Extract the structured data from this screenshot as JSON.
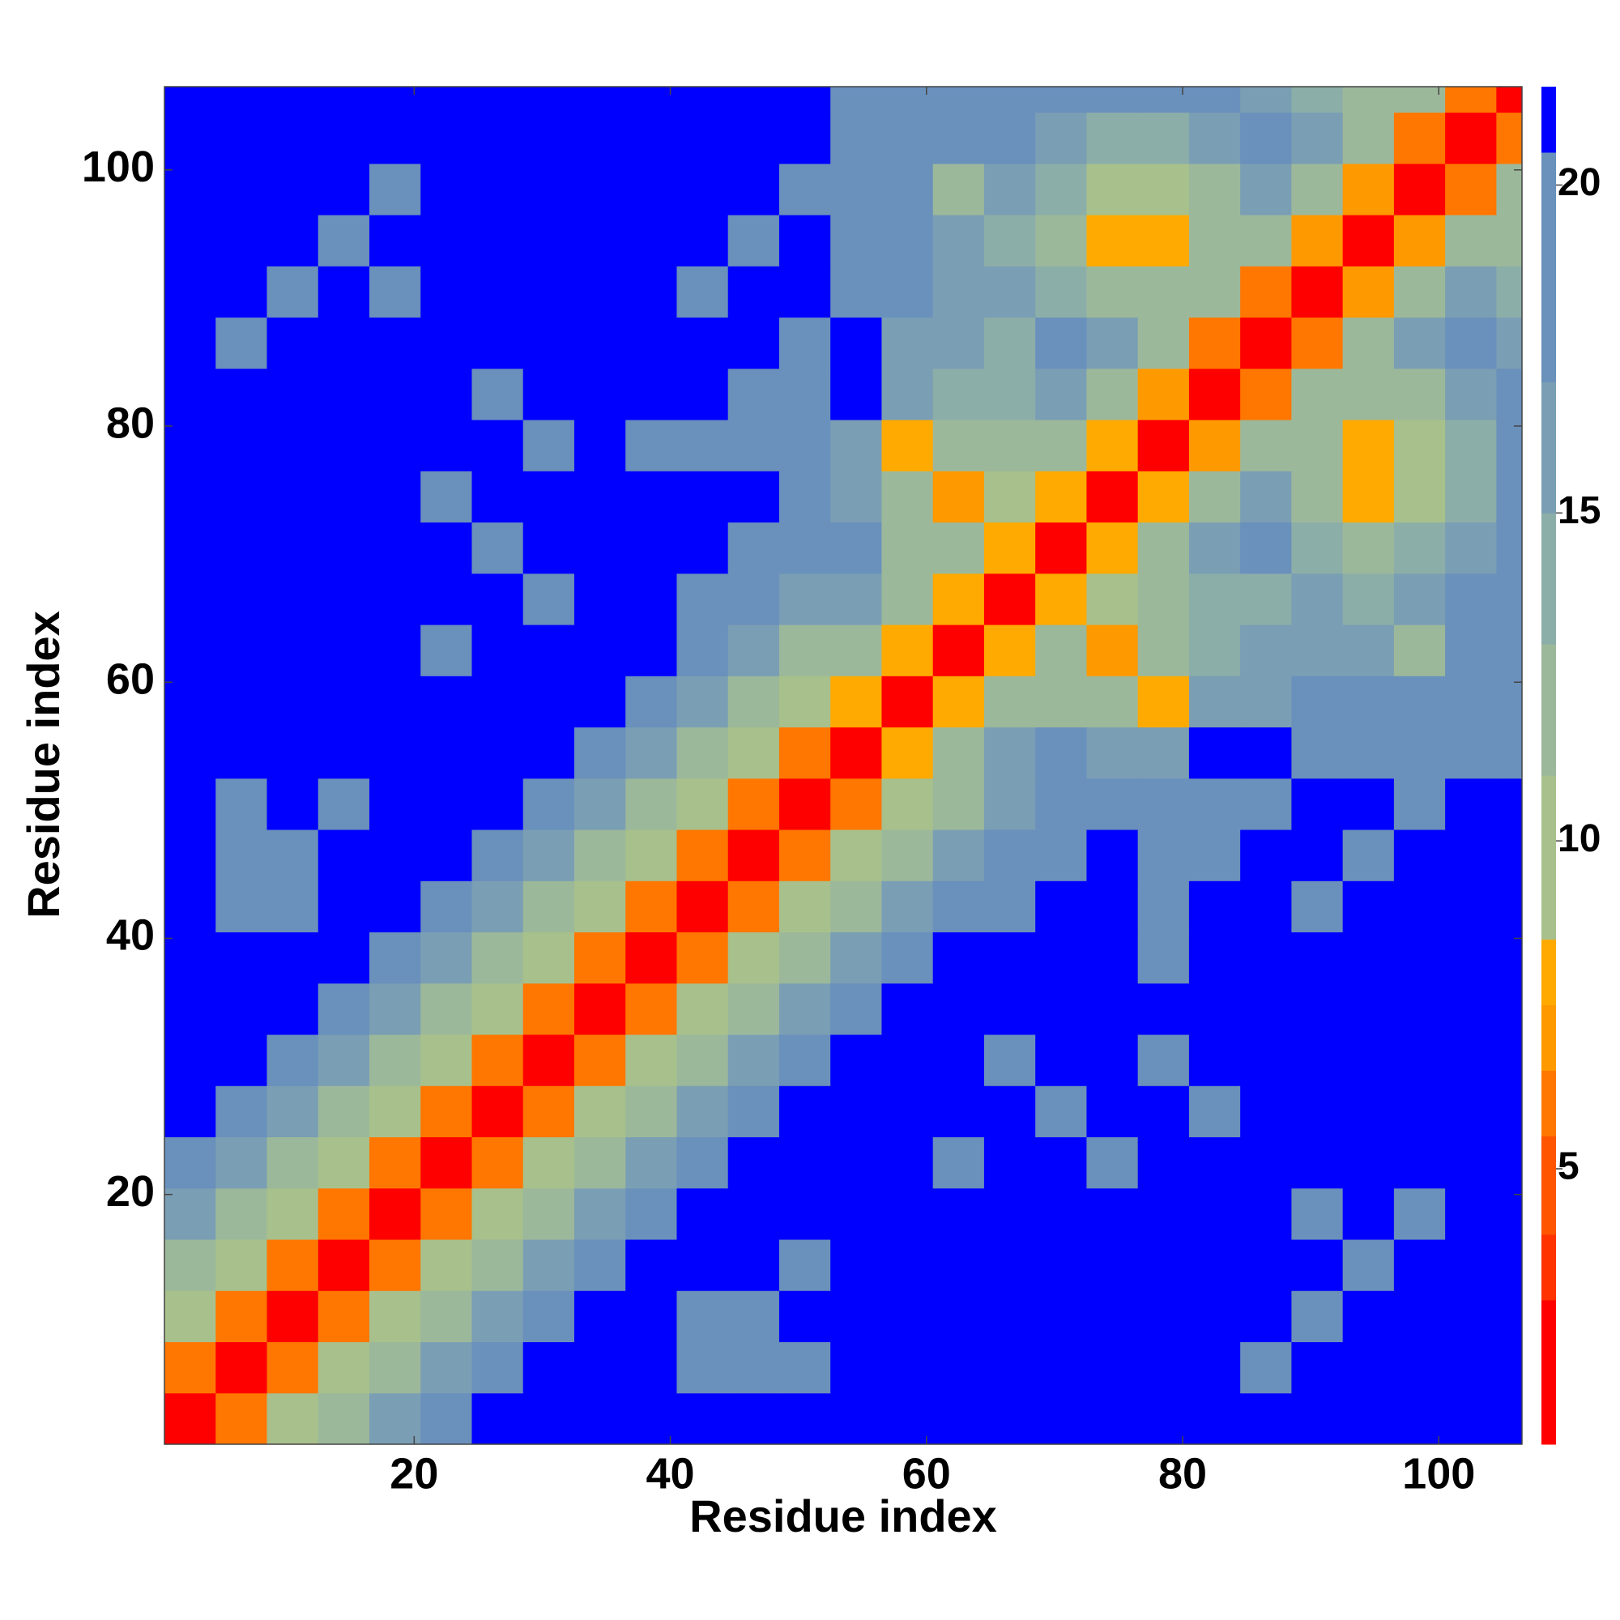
{
  "chart_data": {
    "type": "heatmap",
    "xlabel": "Residue index",
    "ylabel": "Residue index",
    "xbins": [
      0.5,
      4.5,
      8.5,
      12.5,
      16.5,
      20.5,
      24.5,
      28.5,
      32.5,
      36.5,
      40.5,
      44.5,
      48.5,
      52.5,
      56.5,
      60.5,
      64.5,
      68.5,
      72.5,
      76.5,
      80.5,
      84.5,
      88.5,
      92.5,
      96.5,
      100.5,
      104.5,
      106.5
    ],
    "ybins": [
      0.5,
      4.5,
      8.5,
      12.5,
      16.5,
      20.5,
      24.5,
      28.5,
      32.5,
      36.5,
      40.5,
      44.5,
      48.5,
      52.5,
      56.5,
      60.5,
      64.5,
      68.5,
      72.5,
      76.5,
      80.5,
      84.5,
      88.5,
      92.5,
      96.5,
      100.5,
      104.5,
      106.5
    ],
    "xlim": [
      0.5,
      106.5
    ],
    "ylim": [
      0.5,
      106.5
    ],
    "xticks": [
      20,
      40,
      60,
      80,
      100
    ],
    "yticks": [
      20,
      40,
      60,
      80,
      100
    ],
    "clim": [
      0.8,
      21.5
    ],
    "cticks": [
      5,
      10,
      15,
      20
    ],
    "colorscale": [
      [
        0.8,
        "#ff0000"
      ],
      [
        3,
        "#ff3300"
      ],
      [
        4,
        "#ff5500"
      ],
      [
        5.5,
        "#ff7700"
      ],
      [
        6.5,
        "#ff9900"
      ],
      [
        7.5,
        "#ffaa00"
      ],
      [
        8.5,
        "#a8c08c"
      ],
      [
        11,
        "#9cb89a"
      ],
      [
        13,
        "#8caea8"
      ],
      [
        15,
        "#7a9eb4"
      ],
      [
        17,
        "#6a90bc"
      ],
      [
        20.5,
        "#0000ff"
      ]
    ],
    "z": [
      [
        2,
        6,
        9,
        12,
        15,
        18,
        21.5,
        21.5,
        21.5,
        21.5,
        21.5,
        21.5,
        21.5,
        21.5,
        21.5,
        21.5,
        21.5,
        21.5,
        21.5,
        21.5,
        21.5,
        21.5,
        21.5,
        21.5,
        21.5,
        21.5,
        21.5
      ],
      [
        6,
        2,
        6,
        9,
        12,
        15,
        18,
        21.5,
        21.5,
        21.5,
        19,
        18,
        20,
        21.5,
        21.5,
        21.5,
        21.5,
        21.5,
        21.5,
        21.5,
        21.5,
        20,
        21.5,
        21.5,
        21.5,
        21.5,
        21.5
      ],
      [
        9,
        6,
        2,
        6,
        9,
        12,
        15,
        18,
        21.5,
        21.5,
        20,
        19,
        21.5,
        21.5,
        21.5,
        21.5,
        21.5,
        21.5,
        21.5,
        21.5,
        21.5,
        21.5,
        20,
        21.5,
        21.5,
        21.5,
        21.5
      ],
      [
        12,
        9,
        6,
        2,
        6,
        9,
        12,
        15,
        18,
        21.5,
        21.5,
        21.5,
        20,
        21.5,
        21.5,
        21.5,
        21.5,
        21.5,
        21.5,
        21.5,
        21.5,
        21.5,
        21.5,
        20,
        21.5,
        21.5,
        21.5
      ],
      [
        15,
        12,
        9,
        6,
        2,
        6,
        9,
        12,
        15,
        18,
        21.5,
        21.5,
        21.5,
        21.5,
        21.5,
        21.5,
        21.5,
        21.5,
        21.5,
        21.5,
        21.5,
        21.5,
        20,
        21.5,
        20,
        21.5,
        21.5
      ],
      [
        18,
        15,
        12,
        9,
        6,
        2,
        6,
        9,
        12,
        15,
        18,
        21.5,
        21.5,
        21.5,
        21.5,
        19,
        21.5,
        21.5,
        19,
        21.5,
        21.5,
        21.5,
        21.5,
        21.5,
        21.5,
        21.5,
        21.5
      ],
      [
        21.5,
        18,
        15,
        12,
        9,
        6,
        2,
        6,
        9,
        12,
        15,
        18,
        21.5,
        21.5,
        21.5,
        21.5,
        21.5,
        19,
        21.5,
        21.5,
        20,
        21.5,
        21.5,
        21.5,
        21.5,
        21.5,
        21.5
      ],
      [
        21.5,
        21.5,
        18,
        15,
        12,
        9,
        6,
        2,
        6,
        9,
        12,
        15,
        18,
        21.5,
        21.5,
        21.5,
        20,
        21.5,
        21.5,
        19,
        21.5,
        21.5,
        21.5,
        21.5,
        21.5,
        21.5,
        21.5
      ],
      [
        21.5,
        21.5,
        21.5,
        18,
        15,
        12,
        9,
        6,
        2,
        6,
        9,
        12,
        15,
        18,
        21.5,
        21.5,
        21.5,
        21.5,
        21.5,
        21.5,
        21.5,
        21.5,
        21.5,
        21.5,
        21.5,
        21.5,
        21.5
      ],
      [
        21.5,
        21.5,
        21.5,
        21.5,
        18,
        15,
        12,
        9,
        6,
        2,
        6,
        9,
        12,
        15,
        18,
        21.5,
        21.5,
        21.5,
        21.5,
        20,
        21.5,
        21.5,
        21.5,
        21.5,
        21.5,
        21.5,
        21.5
      ],
      [
        21.5,
        19,
        20,
        21.5,
        21.5,
        18,
        15,
        12,
        9,
        6,
        2,
        6,
        9,
        12,
        15,
        18,
        20,
        21.5,
        21.5,
        19,
        21.5,
        21.5,
        19,
        21.5,
        21.5,
        21.5,
        21.5
      ],
      [
        21.5,
        18,
        19,
        21.5,
        21.5,
        21.5,
        18,
        15,
        12,
        9,
        6,
        2,
        6,
        9,
        12,
        15,
        18,
        19,
        21.5,
        18,
        19,
        21.5,
        21.5,
        19,
        21.5,
        21.5,
        21.5
      ],
      [
        21.5,
        20,
        21.5,
        20,
        21.5,
        21.5,
        21.5,
        18,
        15,
        12,
        9,
        6,
        2,
        6,
        9,
        12,
        15,
        18,
        19,
        19,
        19,
        19,
        21.5,
        21.5,
        20,
        21.5,
        21.5
      ],
      [
        21.5,
        21.5,
        21.5,
        21.5,
        21.5,
        21.5,
        21.5,
        21.5,
        18,
        15,
        12,
        9,
        6,
        2,
        8,
        12,
        16,
        17,
        16,
        15,
        21.5,
        21.5,
        19,
        19,
        20,
        19,
        20
      ],
      [
        21.5,
        21.5,
        21.5,
        21.5,
        21.5,
        21.5,
        21.5,
        21.5,
        21.5,
        18,
        15,
        12,
        9,
        8,
        2,
        8,
        12,
        12,
        11,
        8,
        15,
        16,
        17,
        18,
        19,
        17,
        19
      ],
      [
        21.5,
        21.5,
        21.5,
        21.5,
        21.5,
        19,
        21.5,
        21.5,
        21.5,
        21.5,
        18,
        15,
        12,
        12,
        8,
        2,
        8,
        12,
        7,
        12,
        14,
        15,
        15,
        15,
        12,
        18,
        17
      ],
      [
        21.5,
        21.5,
        21.5,
        21.5,
        21.5,
        21.5,
        21.5,
        20,
        21.5,
        21.5,
        20,
        18,
        15,
        16,
        12,
        8,
        2,
        8,
        10,
        11,
        13,
        14,
        15,
        14,
        16,
        17,
        19
      ],
      [
        21.5,
        21.5,
        21.5,
        21.5,
        21.5,
        21.5,
        19,
        21.5,
        21.5,
        21.5,
        21.5,
        19,
        18,
        17,
        12,
        12,
        8,
        2,
        8,
        12,
        16,
        19,
        14,
        12,
        13,
        16,
        18
      ],
      [
        21.5,
        21.5,
        21.5,
        21.5,
        21.5,
        19,
        21.5,
        21.5,
        21.5,
        21.5,
        21.5,
        21.5,
        19,
        16,
        11,
        7,
        10,
        8,
        2,
        8,
        12,
        16,
        11,
        8,
        10,
        14,
        18
      ],
      [
        21.5,
        21.5,
        21.5,
        21.5,
        21.5,
        21.5,
        21.5,
        19,
        21.5,
        20,
        19,
        18,
        19,
        15,
        8,
        12,
        11,
        12,
        8,
        2,
        7,
        12,
        11,
        8,
        9,
        14,
        18
      ],
      [
        21.5,
        21.5,
        21.5,
        21.5,
        21.5,
        21.5,
        20,
        21.5,
        21.5,
        21.5,
        21.5,
        19,
        19,
        21.5,
        15,
        14,
        13,
        16,
        12,
        7,
        2,
        6,
        12,
        11,
        12,
        15,
        17
      ],
      [
        21.5,
        20,
        21.5,
        21.5,
        21.5,
        21.5,
        21.5,
        21.5,
        21.5,
        21.5,
        21.5,
        21.5,
        19,
        21.5,
        16,
        15,
        14,
        19,
        16,
        12,
        6,
        2,
        6,
        12,
        16,
        19,
        15
      ],
      [
        21.5,
        21.5,
        20,
        21.5,
        20,
        21.5,
        21.5,
        21.5,
        21.5,
        21.5,
        19,
        21.5,
        21.5,
        19,
        17,
        15,
        15,
        14,
        11,
        11,
        12,
        6,
        2,
        7,
        12,
        16,
        13
      ],
      [
        21.5,
        21.5,
        21.5,
        20,
        21.5,
        21.5,
        21.5,
        21.5,
        21.5,
        21.5,
        21.5,
        19,
        21.5,
        19,
        18,
        15,
        14,
        12,
        8,
        8,
        11,
        12,
        7,
        2,
        7,
        12,
        12
      ],
      [
        21.5,
        21.5,
        21.5,
        21.5,
        20,
        21.5,
        21.5,
        21.5,
        21.5,
        21.5,
        21.5,
        21.5,
        20,
        20,
        19,
        12,
        16,
        13,
        10,
        9,
        12,
        16,
        12,
        7,
        2,
        6,
        11
      ],
      [
        21.5,
        21.5,
        21.5,
        21.5,
        21.5,
        21.5,
        21.5,
        21.5,
        21.5,
        21.5,
        21.5,
        21.5,
        21.5,
        19,
        17,
        18,
        17,
        16,
        14,
        14,
        15,
        19,
        16,
        12,
        6,
        2,
        6
      ],
      [
        21.5,
        21.5,
        21.5,
        21.5,
        21.5,
        21.5,
        21.5,
        21.5,
        21.5,
        21.5,
        21.5,
        21.5,
        21.5,
        20,
        19,
        17,
        19,
        18,
        18,
        18,
        17,
        15,
        13,
        12,
        11,
        6,
        2
      ]
    ]
  }
}
